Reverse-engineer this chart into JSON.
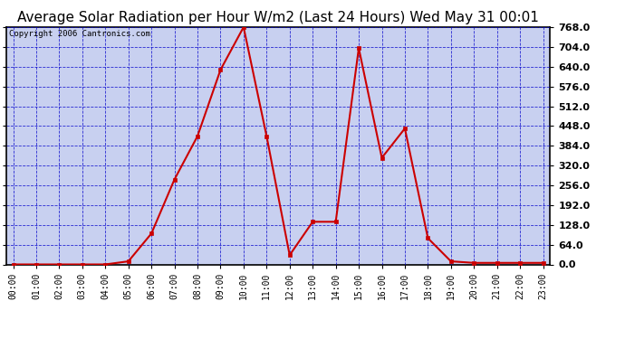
{
  "title": "Average Solar Radiation per Hour W/m2 (Last 24 Hours) Wed May 31 00:01",
  "copyright_text": "Copyright 2006 Cantronics.com",
  "x_labels": [
    "00:00",
    "01:00",
    "02:00",
    "03:00",
    "04:00",
    "05:00",
    "06:00",
    "07:00",
    "08:00",
    "09:00",
    "10:00",
    "11:00",
    "12:00",
    "13:00",
    "14:00",
    "15:00",
    "16:00",
    "17:00",
    "18:00",
    "19:00",
    "20:00",
    "21:00",
    "22:00",
    "23:00"
  ],
  "y_values": [
    0,
    0,
    0,
    0,
    0,
    10,
    100,
    275,
    415,
    630,
    768,
    415,
    30,
    138,
    138,
    700,
    345,
    440,
    85,
    10,
    5,
    5,
    5,
    5
  ],
  "y_min": 0.0,
  "y_max": 768.0,
  "y_ticks": [
    0.0,
    64.0,
    128.0,
    192.0,
    256.0,
    320.0,
    384.0,
    448.0,
    512.0,
    576.0,
    640.0,
    704.0,
    768.0
  ],
  "line_color": "#cc0000",
  "marker_color": "#cc0000",
  "fig_bg_color": "#ffffff",
  "plot_bg_color": "#c8d0f0",
  "grid_color": "#0000cc",
  "border_color": "#000000",
  "title_color": "#000000",
  "title_fontsize": 11,
  "copyright_fontsize": 6.5,
  "tick_label_color": "#000000",
  "tick_fontsize": 7,
  "ytick_fontsize": 8
}
